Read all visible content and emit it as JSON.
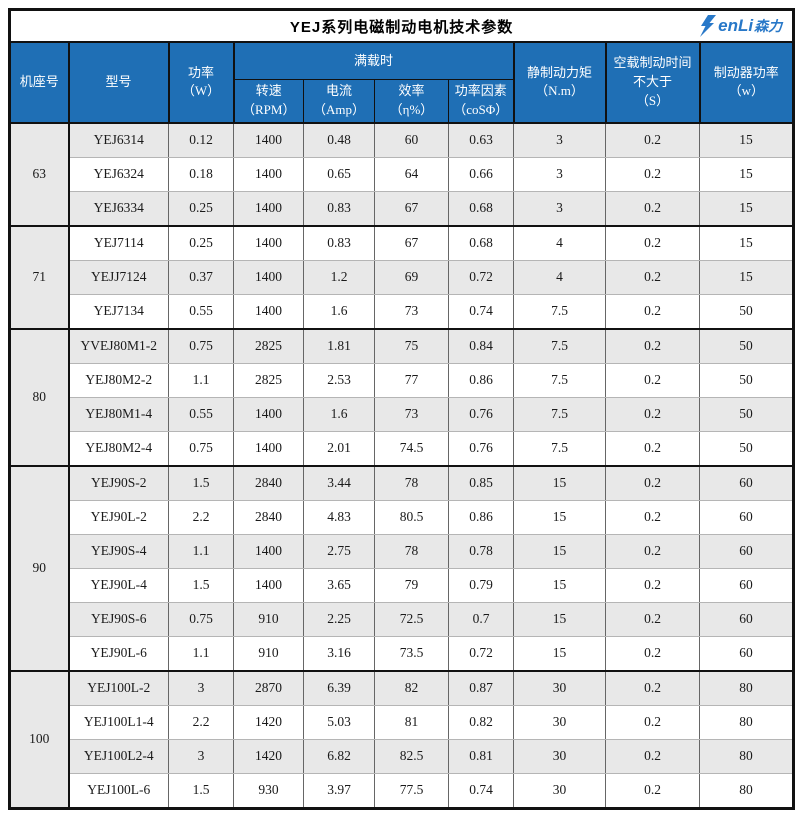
{
  "page_title": "YEJ系列电磁制动电机技术参数",
  "logo": {
    "latin": "enLi",
    "cn": "森力",
    "icon": "lightning-bolt",
    "color": "#2878c8"
  },
  "colors": {
    "header_bg": "#1f6fb5",
    "header_text": "#ffffff",
    "row_shaded": "#e8e8e8",
    "border_dark": "#111111"
  },
  "table": {
    "headers": {
      "frame": "机座号",
      "model": "型号",
      "power": "功率\n（W）",
      "full_load": "满载时",
      "rpm": "转速\n（RPM）",
      "current": "电流\n（Amp）",
      "efficiency": "效率\n（η%）",
      "power_factor": "功率因素\n（coSΦ）",
      "torque": "静制动力矩\n（N.m）",
      "brake_time": "空载制动时间\n不大于\n（S）",
      "brake_power": "制动器功率\n（w）"
    },
    "groups": [
      {
        "frame": "63",
        "rows": [
          {
            "model": "YEJ6314",
            "power": "0.12",
            "rpm": "1400",
            "current": "0.48",
            "efficiency": "60",
            "power_factor": "0.63",
            "torque": "3",
            "brake_time": "0.2",
            "brake_power": "15"
          },
          {
            "model": "YEJ6324",
            "power": "0.18",
            "rpm": "1400",
            "current": "0.65",
            "efficiency": "64",
            "power_factor": "0.66",
            "torque": "3",
            "brake_time": "0.2",
            "brake_power": "15"
          },
          {
            "model": "YEJ6334",
            "power": "0.25",
            "rpm": "1400",
            "current": "0.83",
            "efficiency": "67",
            "power_factor": "0.68",
            "torque": "3",
            "brake_time": "0.2",
            "brake_power": "15"
          }
        ]
      },
      {
        "frame": "71",
        "rows": [
          {
            "model": "YEJ7114",
            "power": "0.25",
            "rpm": "1400",
            "current": "0.83",
            "efficiency": "67",
            "power_factor": "0.68",
            "torque": "4",
            "brake_time": "0.2",
            "brake_power": "15"
          },
          {
            "model": "YEJJ7124",
            "power": "0.37",
            "rpm": "1400",
            "current": "1.2",
            "efficiency": "69",
            "power_factor": "0.72",
            "torque": "4",
            "brake_time": "0.2",
            "brake_power": "15"
          },
          {
            "model": "YEJ7134",
            "power": "0.55",
            "rpm": "1400",
            "current": "1.6",
            "efficiency": "73",
            "power_factor": "0.74",
            "torque": "7.5",
            "brake_time": "0.2",
            "brake_power": "50"
          }
        ]
      },
      {
        "frame": "80",
        "rows": [
          {
            "model": "YVEJ80M1-2",
            "power": "0.75",
            "rpm": "2825",
            "current": "1.81",
            "efficiency": "75",
            "power_factor": "0.84",
            "torque": "7.5",
            "brake_time": "0.2",
            "brake_power": "50"
          },
          {
            "model": "YEJ80M2-2",
            "power": "1.1",
            "rpm": "2825",
            "current": "2.53",
            "efficiency": "77",
            "power_factor": "0.86",
            "torque": "7.5",
            "brake_time": "0.2",
            "brake_power": "50"
          },
          {
            "model": "YEJ80M1-4",
            "power": "0.55",
            "rpm": "1400",
            "current": "1.6",
            "efficiency": "73",
            "power_factor": "0.76",
            "torque": "7.5",
            "brake_time": "0.2",
            "brake_power": "50"
          },
          {
            "model": "YEJ80M2-4",
            "power": "0.75",
            "rpm": "1400",
            "current": "2.01",
            "efficiency": "74.5",
            "power_factor": "0.76",
            "torque": "7.5",
            "brake_time": "0.2",
            "brake_power": "50"
          }
        ]
      },
      {
        "frame": "90",
        "rows": [
          {
            "model": "YEJ90S-2",
            "power": "1.5",
            "rpm": "2840",
            "current": "3.44",
            "efficiency": "78",
            "power_factor": "0.85",
            "torque": "15",
            "brake_time": "0.2",
            "brake_power": "60"
          },
          {
            "model": "YEJ90L-2",
            "power": "2.2",
            "rpm": "2840",
            "current": "4.83",
            "efficiency": "80.5",
            "power_factor": "0.86",
            "torque": "15",
            "brake_time": "0.2",
            "brake_power": "60"
          },
          {
            "model": "YEJ90S-4",
            "power": "1.1",
            "rpm": "1400",
            "current": "2.75",
            "efficiency": "78",
            "power_factor": "0.78",
            "torque": "15",
            "brake_time": "0.2",
            "brake_power": "60"
          },
          {
            "model": "YEJ90L-4",
            "power": "1.5",
            "rpm": "1400",
            "current": "3.65",
            "efficiency": "79",
            "power_factor": "0.79",
            "torque": "15",
            "brake_time": "0.2",
            "brake_power": "60"
          },
          {
            "model": "YEJ90S-6",
            "power": "0.75",
            "rpm": "910",
            "current": "2.25",
            "efficiency": "72.5",
            "power_factor": "0.7",
            "torque": "15",
            "brake_time": "0.2",
            "brake_power": "60"
          },
          {
            "model": "YEJ90L-6",
            "power": "1.1",
            "rpm": "910",
            "current": "3.16",
            "efficiency": "73.5",
            "power_factor": "0.72",
            "torque": "15",
            "brake_time": "0.2",
            "brake_power": "60"
          }
        ]
      },
      {
        "frame": "100",
        "rows": [
          {
            "model": "YEJ100L-2",
            "power": "3",
            "rpm": "2870",
            "current": "6.39",
            "efficiency": "82",
            "power_factor": "0.87",
            "torque": "30",
            "brake_time": "0.2",
            "brake_power": "80"
          },
          {
            "model": "YEJ100L1-4",
            "power": "2.2",
            "rpm": "1420",
            "current": "5.03",
            "efficiency": "81",
            "power_factor": "0.82",
            "torque": "30",
            "brake_time": "0.2",
            "brake_power": "80"
          },
          {
            "model": "YEJ100L2-4",
            "power": "3",
            "rpm": "1420",
            "current": "6.82",
            "efficiency": "82.5",
            "power_factor": "0.81",
            "torque": "30",
            "brake_time": "0.2",
            "brake_power": "80"
          },
          {
            "model": "YEJ100L-6",
            "power": "1.5",
            "rpm": "930",
            "current": "3.97",
            "efficiency": "77.5",
            "power_factor": "0.74",
            "torque": "30",
            "brake_time": "0.2",
            "brake_power": "80"
          }
        ]
      }
    ]
  }
}
